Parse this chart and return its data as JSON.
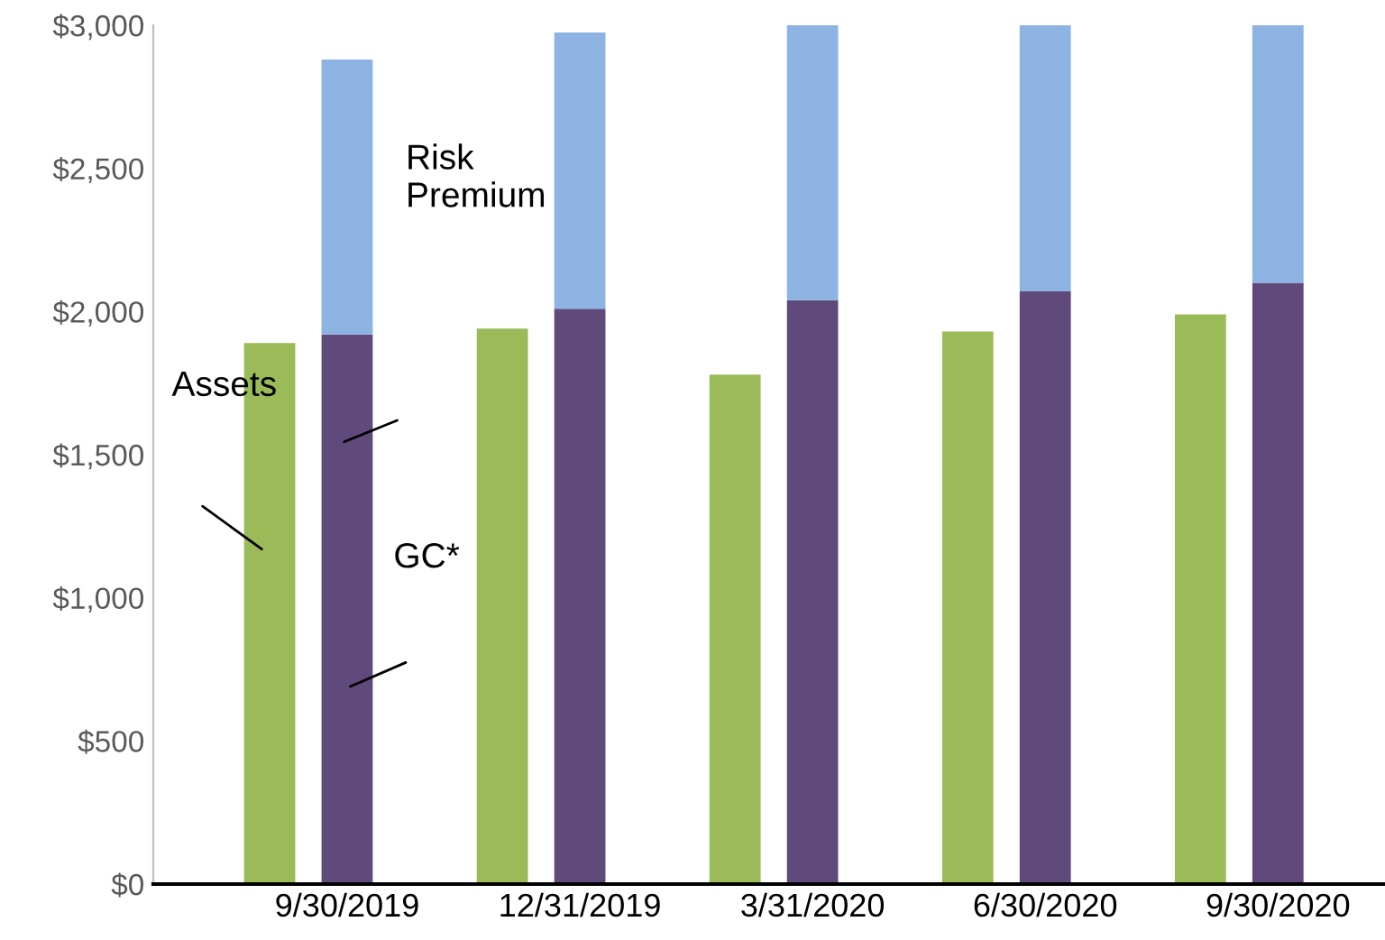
{
  "chart_data": {
    "type": "bar",
    "categories": [
      null,
      "9/30/2019",
      null,
      "12/31/2019",
      null,
      "3/31/2020",
      null,
      "6/30/2020",
      null,
      "9/30/2020"
    ],
    "series": [
      {
        "color": "#9bbb59",
        "values": [
          1890,
          null,
          1940,
          null,
          1780,
          null,
          1930,
          null,
          1990,
          null
        ]
      },
      {
        "color": "#604a7b",
        "values": [
          null,
          1920,
          null,
          2010,
          null,
          2040,
          null,
          2070,
          null,
          2100
        ]
      },
      {
        "color": "#8db3e2",
        "values": [
          null,
          960,
          null,
          965,
          null,
          960,
          null,
          930,
          null,
          900
        ]
      }
    ],
    "stacked": true,
    "ylim": [
      0,
      3000
    ],
    "yticks": [
      {
        "value": 0,
        "label": "$0"
      },
      {
        "value": 500,
        "label": "$500"
      },
      {
        "value": 1000,
        "label": "$1,000"
      },
      {
        "value": 1500,
        "label": "$1,500"
      },
      {
        "value": 2000,
        "label": "$2,000"
      },
      {
        "value": 2500,
        "label": "$2,500"
      },
      {
        "value": 3000,
        "label": "$3,000"
      }
    ],
    "annotations": [
      "Assets",
      "Risk\nPremium",
      "GC*"
    ],
    "grid": false,
    "legend": false
  }
}
